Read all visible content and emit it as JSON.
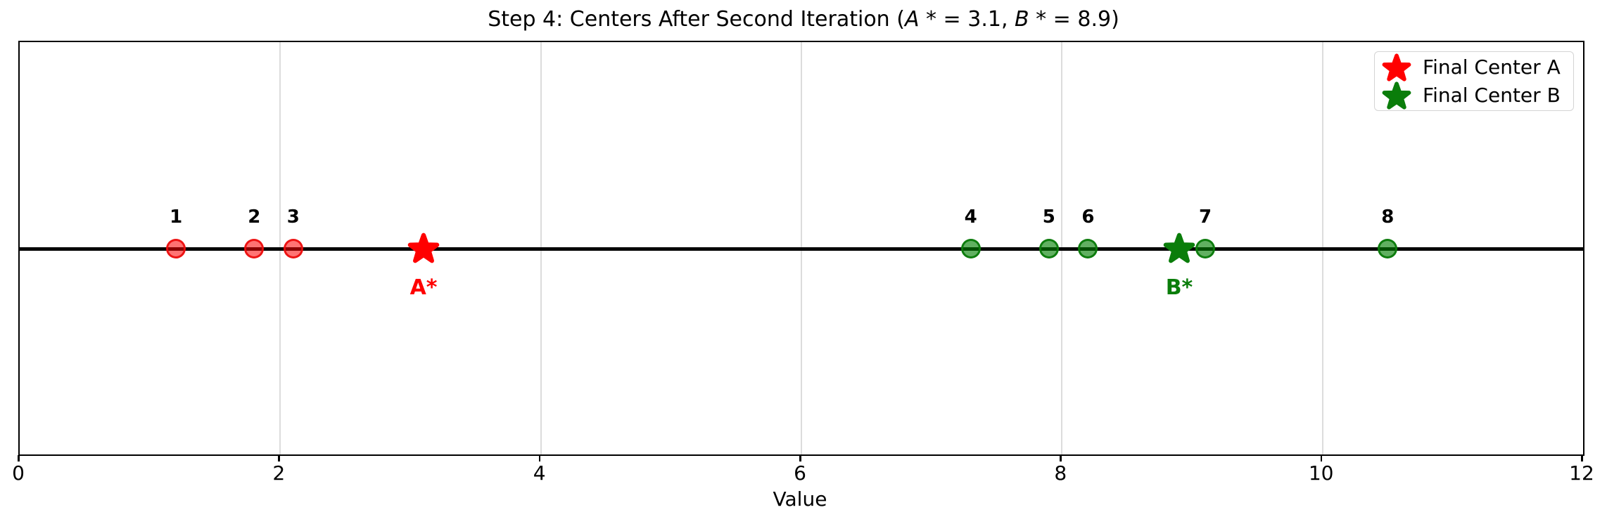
{
  "chart_data": {
    "type": "scatter",
    "title": "Step 4: Centers After Second Iteration (A* = 3.1, B* = 8.9)",
    "title_parts": [
      {
        "text": "Step 4: Centers After Second Iteration (",
        "italic": false
      },
      {
        "text": "A",
        "italic": true
      },
      {
        "text": " * = 3.1, ",
        "italic": false
      },
      {
        "text": "B",
        "italic": true
      },
      {
        "text": " * = 8.9)",
        "italic": false
      }
    ],
    "xlabel": "Value",
    "xlim": [
      0,
      12
    ],
    "xticks": [
      0,
      2,
      4,
      6,
      8,
      10,
      12
    ],
    "gridlines_x": [
      2,
      4,
      6,
      8,
      10
    ],
    "grid": "vertical-only",
    "baseline_y": 0,
    "points": [
      {
        "label": "1",
        "x": 1.2,
        "cluster": "A",
        "color": "red"
      },
      {
        "label": "2",
        "x": 1.8,
        "cluster": "A",
        "color": "red"
      },
      {
        "label": "3",
        "x": 2.1,
        "cluster": "A",
        "color": "red"
      },
      {
        "label": "4",
        "x": 7.3,
        "cluster": "B",
        "color": "green"
      },
      {
        "label": "5",
        "x": 7.9,
        "cluster": "B",
        "color": "green"
      },
      {
        "label": "6",
        "x": 8.2,
        "cluster": "B",
        "color": "green"
      },
      {
        "label": "7",
        "x": 9.1,
        "cluster": "B",
        "color": "green"
      },
      {
        "label": "8",
        "x": 10.5,
        "cluster": "B",
        "color": "green"
      }
    ],
    "centers": [
      {
        "label": "A*",
        "x": 3.1,
        "marker": "star",
        "color": "#ff0000"
      },
      {
        "label": "B*",
        "x": 8.9,
        "marker": "star",
        "color": "#0a7d0a"
      }
    ],
    "legend": {
      "position": "upper-right",
      "entries": [
        {
          "label": "Final Center A",
          "marker": "star",
          "color": "#ff0000"
        },
        {
          "label": "Final Center B",
          "marker": "star",
          "color": "#0a7d0a"
        }
      ]
    },
    "colors": {
      "cluster_a": "#ff0000",
      "cluster_b": "#008000",
      "grid": "#dcdcdc",
      "axis": "#000000",
      "background": "#ffffff"
    }
  }
}
